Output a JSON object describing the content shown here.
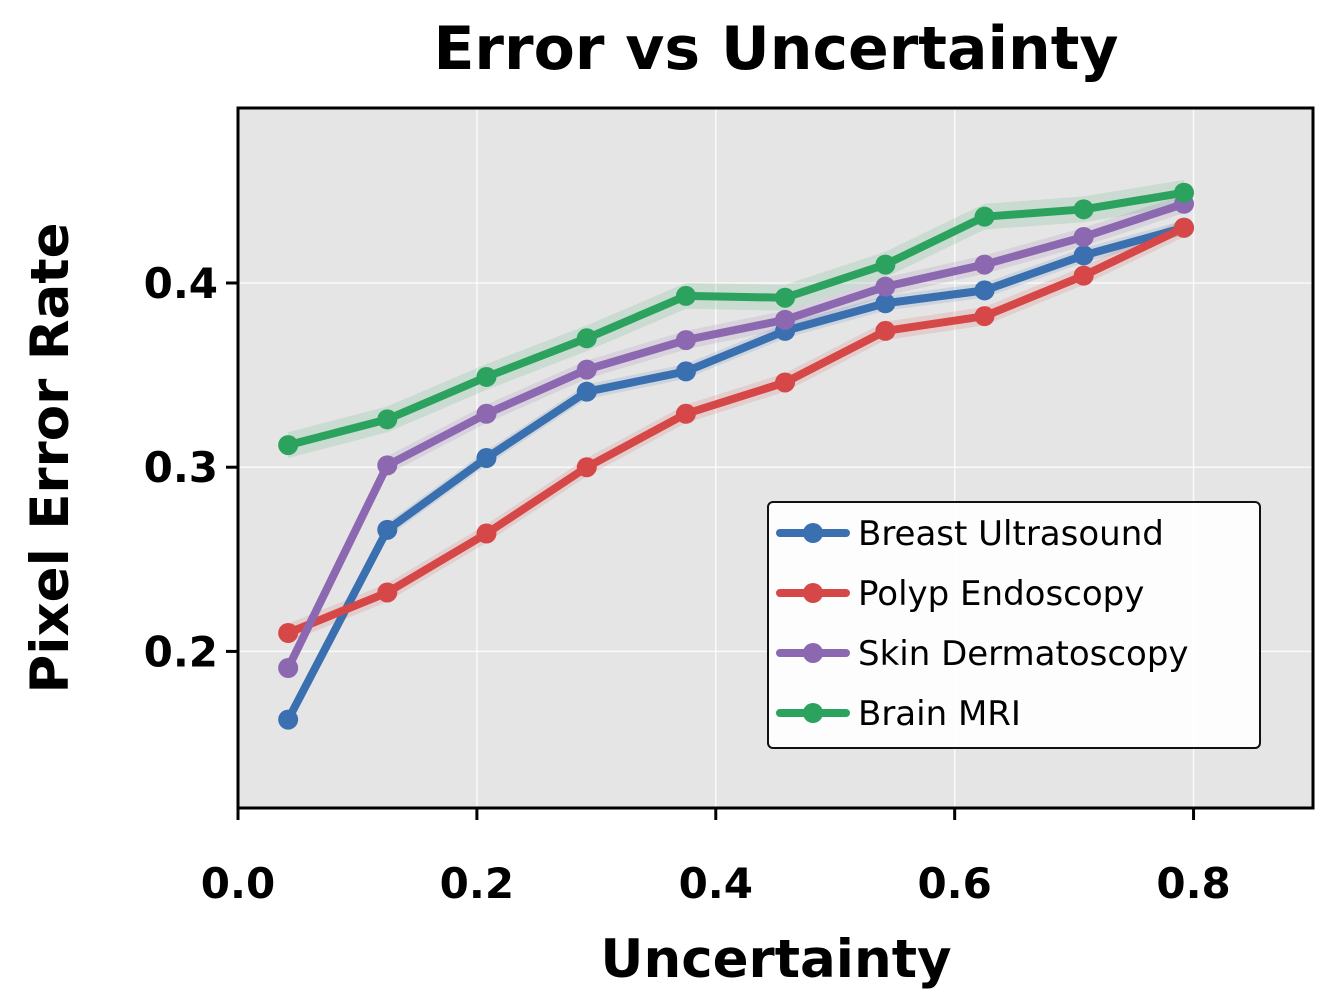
{
  "chart_data": {
    "type": "line",
    "title": "Error vs Uncertainty",
    "xlabel": "Uncertainty",
    "ylabel": "Pixel Error Rate",
    "xlim": [
      0.0,
      0.9
    ],
    "ylim": [
      0.115,
      0.495
    ],
    "xticks": [
      0.0,
      0.2,
      0.4,
      0.6,
      0.8
    ],
    "xtick_labels": [
      "0.0",
      "0.2",
      "0.4",
      "0.6",
      "0.8"
    ],
    "yticks": [
      0.2,
      0.3,
      0.4
    ],
    "ytick_labels": [
      "0.2",
      "0.3",
      "0.4"
    ],
    "grid": true,
    "legend_position": "lower-right",
    "x": [
      0.042,
      0.125,
      0.208,
      0.292,
      0.375,
      0.458,
      0.542,
      0.625,
      0.708,
      0.792
    ],
    "series": [
      {
        "name": "Breast Ultrasound",
        "color": "#3a6fb0",
        "values": [
          0.163,
          0.266,
          0.305,
          0.341,
          0.352,
          0.374,
          0.389,
          0.396,
          0.415,
          0.43
        ],
        "band": 0.004
      },
      {
        "name": "Polyp Endoscopy",
        "color": "#d64848",
        "values": [
          0.21,
          0.232,
          0.264,
          0.3,
          0.329,
          0.346,
          0.374,
          0.382,
          0.404,
          0.43
        ],
        "band": 0.005
      },
      {
        "name": "Skin Dermatoscopy",
        "color": "#8c68b0",
        "values": [
          0.191,
          0.301,
          0.329,
          0.353,
          0.369,
          0.38,
          0.398,
          0.41,
          0.425,
          0.443
        ],
        "band": 0.005
      },
      {
        "name": "Brain MRI",
        "color": "#2ca25f",
        "values": [
          0.312,
          0.326,
          0.349,
          0.37,
          0.393,
          0.392,
          0.41,
          0.436,
          0.44,
          0.449
        ],
        "band": 0.007
      }
    ]
  }
}
